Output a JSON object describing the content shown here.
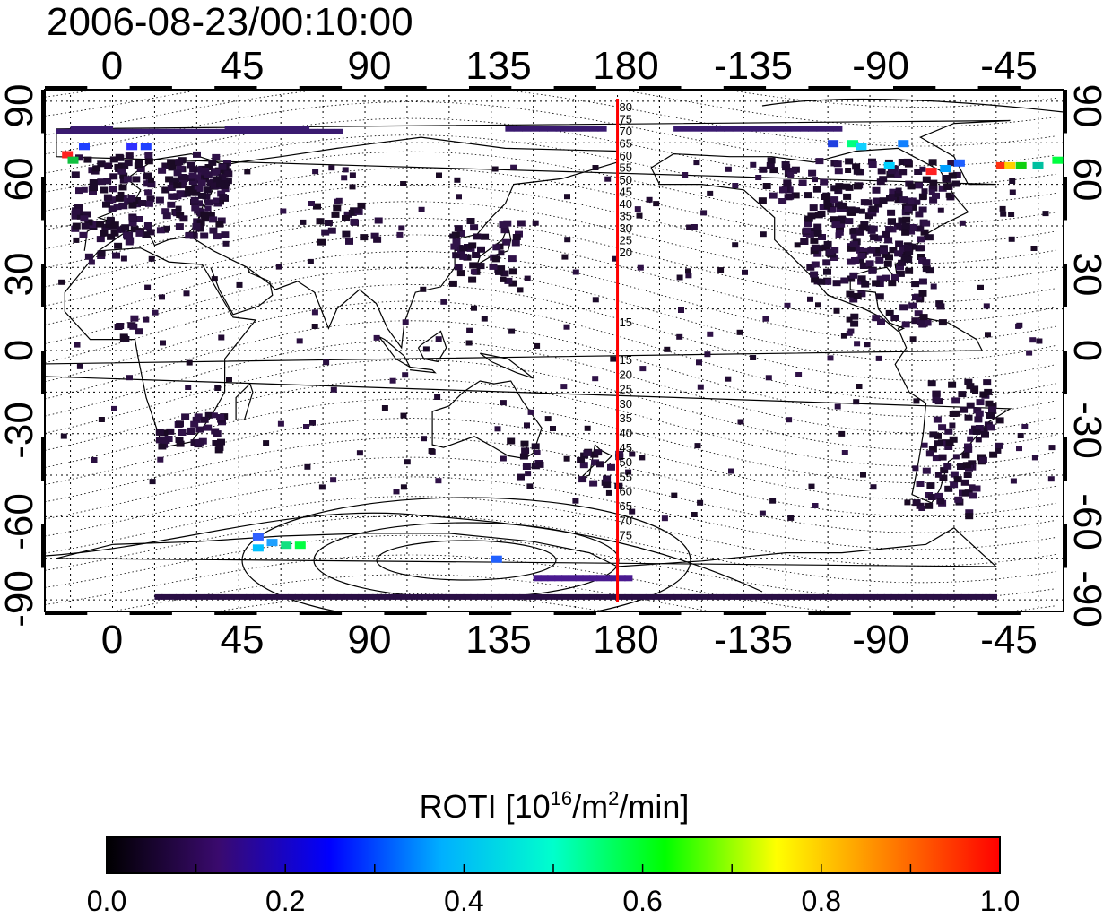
{
  "timestamp": "2006-08-23/00:10:00",
  "map": {
    "lon_labels": [
      "0",
      "45",
      "90",
      "135",
      "180",
      "-135",
      "-90",
      "-45"
    ],
    "lat_labels_left": [
      "90",
      "60",
      "30",
      "0",
      "-30",
      "-60",
      "-90"
    ],
    "lat_labels_right": [
      "90",
      "60",
      "30",
      "0",
      "-30",
      "-60",
      "-90"
    ],
    "meridian_longitude": 180,
    "meridian_color": "#ff0000",
    "contour_labels_north": [
      "80",
      "75",
      "70",
      "65",
      "60",
      "55",
      "50",
      "45",
      "40",
      "35",
      "30",
      "25",
      "20",
      "15"
    ],
    "contour_labels_south": [
      "15",
      "20",
      "25",
      "30",
      "35",
      "40",
      "45",
      "50",
      "55",
      "60",
      "65",
      "70",
      "75"
    ]
  },
  "colorbar": {
    "label_prefix": "ROTI  [10",
    "label_sup1": "16",
    "label_mid": "/m",
    "label_sup2": "2",
    "label_suffix": "/min]",
    "ticks": [
      "0.0",
      "0.2",
      "0.4",
      "0.6",
      "0.8",
      "1.0"
    ],
    "range": [
      0.0,
      1.0
    ],
    "colormap_stops": [
      "#000000",
      "#3a0a6e",
      "#0000ff",
      "#00b0ff",
      "#00ffcc",
      "#00ff00",
      "#ffff00",
      "#ff8000",
      "#ff0000"
    ]
  }
}
